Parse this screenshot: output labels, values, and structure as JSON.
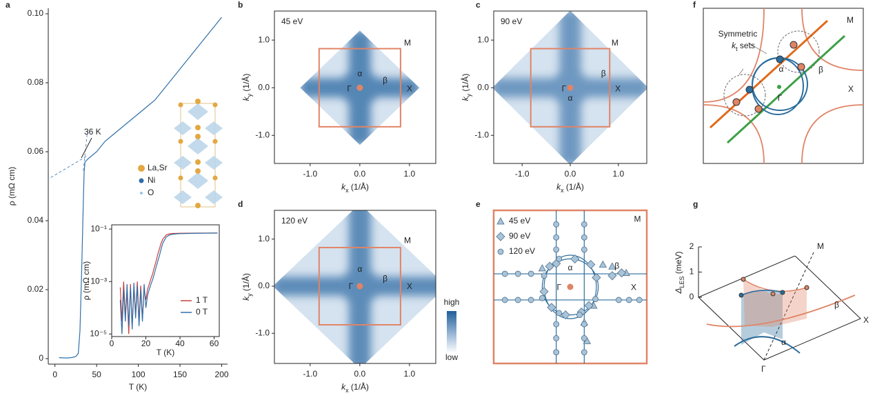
{
  "chart_data": [
    {
      "type": "line",
      "panel": "a",
      "xlabel": "T (K)",
      "ylabel": "ρ (mΩ cm)",
      "xlim": [
        -8,
        207
      ],
      "ylim": [
        -0.0016,
        0.1016
      ],
      "xticks": [
        0,
        50,
        100,
        150,
        200
      ],
      "yticks": [
        0,
        0.02,
        0.04,
        0.06,
        0.08,
        {
          "value": 0.1,
          "label": "0.10"
        }
      ],
      "x": [
        5,
        10,
        15,
        20,
        25,
        28,
        30,
        32,
        34,
        35,
        36,
        40,
        50,
        60,
        70,
        80,
        90,
        100,
        110,
        120,
        130,
        140,
        150,
        160,
        170,
        180,
        190,
        200
      ],
      "series": [
        {
          "color": "#2f6fa8",
          "values": [
            0.0003,
            0.0002,
            0.0002,
            0.0003,
            0.0006,
            0.0015,
            0.008,
            0.025,
            0.045,
            0.054,
            0.057,
            0.058,
            0.06,
            0.063,
            0.065,
            0.067,
            0.069,
            0.071,
            0.073,
            0.075,
            0.078,
            0.081,
            0.084,
            0.087,
            0.09,
            0.093,
            0.096,
            0.099
          ]
        }
      ],
      "fits": [
        {
          "x": [
            -5,
            40
          ],
          "values": [
            0.0525,
            0.059
          ]
        },
        {
          "x": [
            34,
            39
          ],
          "values": [
            0.0545,
            0.066
          ]
        }
      ],
      "annotation": "36 K",
      "legend_items": [
        "La,Sr",
        "Ni",
        "O"
      ]
    },
    {
      "type": "line",
      "xlabel": "T (K)",
      "ylabel": "ρ (mΩ cm)",
      "ylog": true,
      "xlim": [
        0,
        63
      ],
      "ylim": [
        8e-06,
        0.145
      ],
      "xticks": [
        0,
        20,
        40,
        60
      ],
      "yticks": [
        {
          "value": 1e-05,
          "label": "10⁻⁵"
        },
        {
          "value": 0.001,
          "label": "10⁻³"
        },
        {
          "value": 0.1,
          "label": "10⁻¹"
        }
      ],
      "x": [
        5,
        6,
        7,
        8,
        9,
        10,
        11,
        12,
        13,
        14,
        15,
        16,
        17,
        18,
        19,
        20,
        21,
        22,
        23,
        24,
        25,
        26,
        27,
        28,
        29,
        30,
        32,
        34,
        36,
        40,
        50,
        60,
        62
      ],
      "series": [
        {
          "name": "1 T",
          "color": "#c8403c",
          "values": [
            0.0006,
            3e-05,
            0.001,
            5e-05,
            0.0004,
            1e-05,
            0.0008,
            2e-05,
            0.0005,
            6e-05,
            0.001,
            3e-05,
            0.0007,
            4e-05,
            0.0005,
            0.0002,
            0.0005,
            0.0008,
            0.0013,
            0.002,
            0.0035,
            0.006,
            0.011,
            0.018,
            0.03,
            0.042,
            0.06,
            0.066,
            0.068,
            0.069,
            0.07,
            0.071,
            0.071
          ]
        },
        {
          "name": "0 T",
          "color": "#2f6fa8",
          "values": [
            0.0002,
            1e-05,
            0.0005,
            3e-05,
            0.0008,
            2e-05,
            0.0006,
            1.5e-05,
            0.0009,
            4e-05,
            0.0007,
            2e-05,
            0.0005,
            3e-05,
            0.0008,
            0.0001,
            0.0003,
            0.0005,
            0.0008,
            0.0012,
            0.002,
            0.0035,
            0.006,
            0.01,
            0.018,
            0.03,
            0.05,
            0.06,
            0.064,
            0.067,
            0.069,
            0.07,
            0.07
          ]
        }
      ]
    },
    {
      "type": "heatmap",
      "panel": "b",
      "energy": "45 eV",
      "xlabel": [
        "k",
        "x",
        " (1/Å)"
      ],
      "ylabel": [
        "k",
        "y",
        " (1/Å)"
      ],
      "xlim": [
        -1.72,
        1.53
      ],
      "ylim": [
        -1.59,
        1.61
      ],
      "xticks": [
        {
          "value": -1,
          "label": "-1.0"
        },
        {
          "value": 0,
          "label": "0.0"
        },
        {
          "value": 1,
          "label": "1.0"
        }
      ],
      "yticks": [
        {
          "value": -1,
          "label": "-1.0"
        },
        {
          "value": 0,
          "label": "0.0"
        },
        {
          "value": 1,
          "label": "1.0"
        }
      ],
      "zone": 0.82,
      "labels": [
        "M",
        "α",
        "β",
        "Γ",
        "X"
      ]
    },
    {
      "type": "heatmap",
      "panel": "c",
      "energy": "90 eV",
      "xlabel": [
        "k",
        "x",
        " (1/Å)"
      ],
      "ylabel": [
        "k",
        "y",
        " (1/Å)"
      ],
      "xlim": [
        -1.59,
        1.59
      ],
      "ylim": [
        -1.59,
        1.61
      ],
      "xticks": [
        {
          "value": -1,
          "label": "-1.0"
        },
        {
          "value": 0,
          "label": "0.0"
        },
        {
          "value": 1,
          "label": "1.0"
        }
      ],
      "yticks": [
        {
          "value": -1,
          "label": "-1.0"
        },
        {
          "value": 0,
          "label": "0.0"
        },
        {
          "value": 1,
          "label": "1.0"
        }
      ],
      "zone": 0.82,
      "labels": [
        "M",
        "β",
        "Γ",
        "X",
        "α"
      ]
    },
    {
      "type": "heatmap",
      "panel": "d",
      "energy": "120 eV",
      "xlabel": [
        "k",
        "x",
        " (1/Å)"
      ],
      "ylabel": [
        "k",
        "y",
        " (1/Å)"
      ],
      "xlim": [
        -1.72,
        1.53
      ],
      "ylim": [
        -1.64,
        1.61
      ],
      "xticks": [
        {
          "value": -1,
          "label": "-1.0"
        },
        {
          "value": 0,
          "label": "0.0"
        },
        {
          "value": 1,
          "label": "1.0"
        }
      ],
      "yticks": [
        {
          "value": -1,
          "label": "-1.0"
        },
        {
          "value": 0,
          "label": "0.0"
        },
        {
          "value": 1,
          "label": "1.0"
        }
      ],
      "zone": 0.82,
      "labels": [
        "M",
        "α",
        "β",
        "Γ",
        "X"
      ],
      "colorbar_labels": [
        "high",
        "low"
      ]
    },
    {
      "type": "scatter",
      "panel": "e",
      "xlim": [
        -0.82,
        0.82
      ],
      "ylim": [
        -0.82,
        0.82
      ],
      "frame_color": "#e08466",
      "labels": [
        "M",
        "α",
        "β",
        "Γ",
        "X"
      ],
      "series": [
        {
          "name": "45 eV",
          "marker": "triangle",
          "color": "#a9c3d8",
          "x": [
            0.35,
            0.45,
            0.6,
            -0.3,
            0.15,
            0.18,
            0.25
          ],
          "values": [
            0.24,
            0.22,
            0.15,
            0.2,
            -0.38,
            -0.58,
            -0.2
          ]
        },
        {
          "name": "90 eV",
          "marker": "diamond",
          "color": "#a9c3d8",
          "x": [
            -0.22,
            0.22,
            0.28,
            -0.28,
            -0.2,
            0.2,
            0.05,
            -0.05,
            0.45,
            0.55,
            -0.15,
            0.12
          ],
          "values": [
            0.22,
            0.24,
            0.1,
            -0.05,
            -0.22,
            -0.2,
            0.3,
            -0.3,
            0.12,
            0.15,
            0.25,
            -0.27
          ]
        },
        {
          "name": "120 eV",
          "marker": "circle",
          "color": "#a9c3d8",
          "x": [
            -0.15,
            0.15,
            -0.15,
            0.15,
            -0.15,
            0.15,
            -0.15,
            0.15,
            -0.15,
            0.15,
            -0.15,
            0.15,
            -0.7,
            -0.56,
            -0.42,
            -0.7,
            -0.56,
            -0.42,
            0.52,
            0.63,
            0.74,
            -0.28,
            -0.3,
            0.27,
            -0.12,
            0.1,
            -0.12
          ],
          "values": [
            0.67,
            0.67,
            0.53,
            0.53,
            0.4,
            0.4,
            -0.4,
            -0.4,
            -0.55,
            -0.55,
            -0.7,
            -0.7,
            0.14,
            0.14,
            0.14,
            -0.14,
            -0.14,
            -0.14,
            -0.14,
            -0.14,
            -0.14,
            0.12,
            -0.12,
            -0.13,
            0.3,
            -0.3,
            -0.28
          ]
        }
      ]
    }
  ],
  "panel_f": {
    "panel": "f",
    "symmetric_label": {
      "line1": "Symmetric",
      "line2": [
        "k",
        "t",
        " sets"
      ]
    },
    "labels": [
      "M",
      "α",
      "β",
      "Γ",
      "X"
    ]
  },
  "panel_g": {
    "panel": "g",
    "zlabel": [
      "Δ",
      "LES",
      " (meV)"
    ],
    "zticks": [
      0,
      1,
      2
    ],
    "labels": [
      "M",
      "X",
      "Γ",
      "α",
      "β"
    ]
  }
}
